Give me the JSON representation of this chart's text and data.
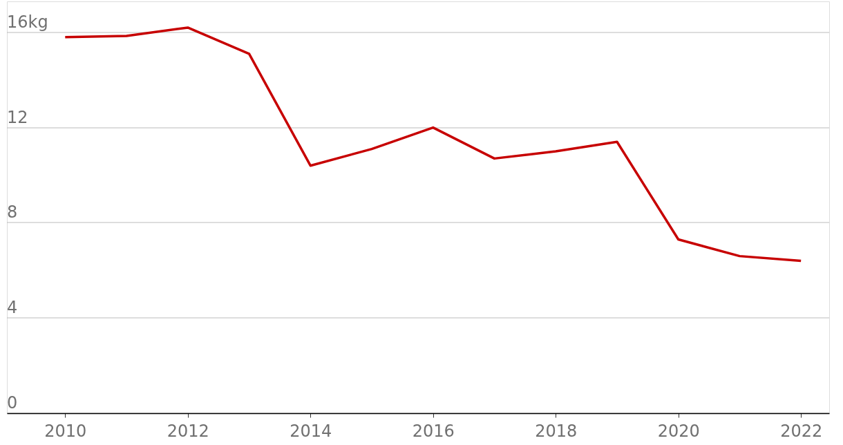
{
  "chart_data": {
    "type": "line",
    "x": [
      2010,
      2011,
      2012,
      2013,
      2014,
      2015,
      2016,
      2017,
      2018,
      2019,
      2020,
      2021,
      2022
    ],
    "series": [
      {
        "color": "#c70000",
        "values": [
          15.8,
          15.85,
          16.2,
          15.1,
          10.4,
          11.1,
          12.0,
          10.7,
          11.0,
          11.4,
          7.3,
          6.6,
          6.4
        ]
      }
    ],
    "xlim": [
      2009.05,
      2022.46
    ],
    "xticks": [
      2010,
      2012,
      2014,
      2016,
      2018,
      2020,
      2022
    ],
    "ylim": [
      0,
      17.3
    ],
    "yticks": [
      0,
      4,
      8,
      12,
      {
        "value": 16,
        "label": "16kg"
      }
    ],
    "grid": "y",
    "marker": "none",
    "line_style": "solid"
  }
}
